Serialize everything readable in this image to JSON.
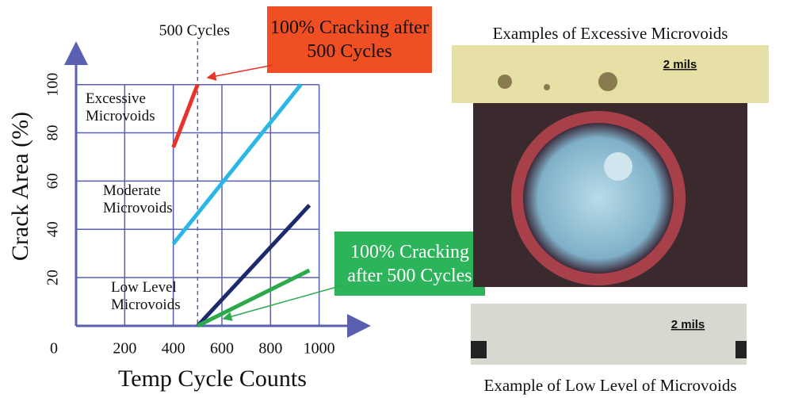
{
  "chart_data": {
    "type": "line",
    "x_label": "Temp Cycle Counts",
    "y_label": "Crack Area (%)",
    "xlim": [
      0,
      1200
    ],
    "ylim": [
      0,
      116
    ],
    "xticks": [
      0,
      200,
      400,
      600,
      800,
      1000
    ],
    "yticks": [
      20,
      40,
      60,
      80,
      100
    ],
    "grid": true,
    "series": [
      {
        "name": "Excessive Microvoids",
        "color": "#e8322a",
        "x": [
          400,
          500
        ],
        "values": [
          74,
          100
        ]
      },
      {
        "name": "Moderate Microvoids",
        "color": "#2ab7e8",
        "x": [
          400,
          925
        ],
        "values": [
          34,
          100
        ]
      },
      {
        "name": "Low Level Microvoids",
        "color": "#1c2a6c",
        "x": [
          500,
          960
        ],
        "values": [
          0,
          50
        ]
      },
      {
        "name": "",
        "color": "#2aaa4a",
        "x": [
          500,
          960
        ],
        "values": [
          0,
          23
        ]
      }
    ],
    "vline": {
      "x": 500,
      "label": "500 Cycles"
    },
    "callouts": [
      "100% Cracking after 500 Cycles",
      "100% Cracking after 500 Cycles"
    ]
  },
  "images": {
    "top_title": "Examples of Excessive Microvoids",
    "bottom_title": "Example of Low Level of Microvoids",
    "scale_top": "2 mils",
    "scale_bottom": "2 mils"
  }
}
